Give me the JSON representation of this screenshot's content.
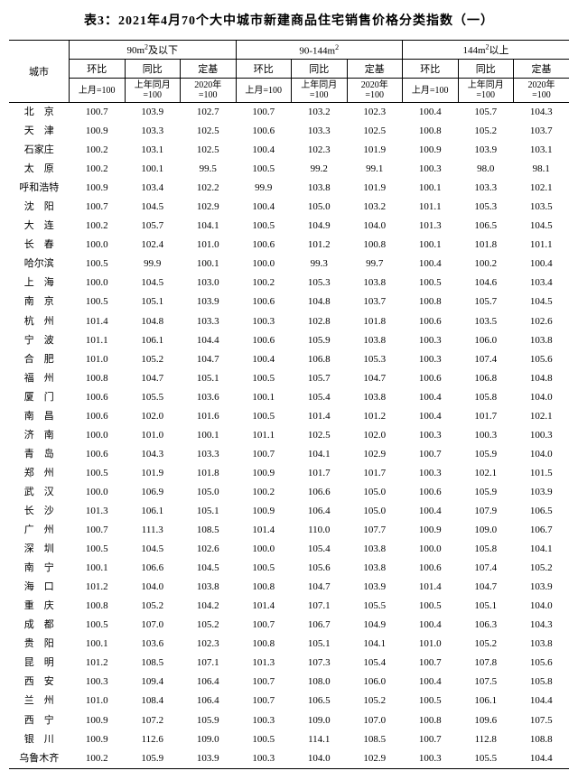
{
  "title": "表3：2021年4月70个大中城市新建商品住宅销售价格分类指数（一）",
  "header": {
    "city": "城市",
    "group1": "90m²及以下",
    "group2": "90-144m²",
    "group3": "144m²以上",
    "huanbi": "环比",
    "tongbi": "同比",
    "dingji": "定基",
    "sub_huanbi": "上月=100",
    "sub_tongbi": "上年同月\n=100",
    "sub_dingji": "2020年\n=100"
  },
  "rows": [
    {
      "city": "北　京",
      "v": [
        "100.7",
        "103.9",
        "102.7",
        "100.7",
        "103.2",
        "102.3",
        "100.4",
        "105.7",
        "104.3"
      ]
    },
    {
      "city": "天　津",
      "v": [
        "100.9",
        "103.3",
        "102.5",
        "100.6",
        "103.3",
        "102.5",
        "100.8",
        "105.2",
        "103.7"
      ]
    },
    {
      "city": "石家庄",
      "v": [
        "100.2",
        "103.1",
        "102.5",
        "100.4",
        "102.3",
        "101.9",
        "100.9",
        "103.9",
        "103.1"
      ]
    },
    {
      "city": "太　原",
      "v": [
        "100.2",
        "100.1",
        "99.5",
        "100.5",
        "99.2",
        "99.1",
        "100.3",
        "98.0",
        "98.1"
      ]
    },
    {
      "city": "呼和浩特",
      "v": [
        "100.9",
        "103.4",
        "102.2",
        "99.9",
        "103.8",
        "101.9",
        "100.1",
        "103.3",
        "102.1"
      ]
    },
    {
      "city": "沈　阳",
      "v": [
        "100.7",
        "104.5",
        "102.9",
        "100.4",
        "105.0",
        "103.2",
        "101.1",
        "105.3",
        "103.5"
      ]
    },
    {
      "city": "大　连",
      "v": [
        "100.2",
        "105.7",
        "104.1",
        "100.5",
        "104.9",
        "104.0",
        "101.3",
        "106.5",
        "104.5"
      ]
    },
    {
      "city": "长　春",
      "v": [
        "100.0",
        "102.4",
        "101.0",
        "100.6",
        "101.2",
        "100.8",
        "100.1",
        "101.8",
        "101.1"
      ]
    },
    {
      "city": "哈尔滨",
      "v": [
        "100.5",
        "99.9",
        "100.1",
        "100.0",
        "99.3",
        "99.7",
        "100.4",
        "100.2",
        "100.4"
      ]
    },
    {
      "city": "上　海",
      "v": [
        "100.0",
        "104.5",
        "103.0",
        "100.2",
        "105.3",
        "103.8",
        "100.5",
        "104.6",
        "103.4"
      ]
    },
    {
      "city": "南　京",
      "v": [
        "100.5",
        "105.1",
        "103.9",
        "100.6",
        "104.8",
        "103.7",
        "100.8",
        "105.7",
        "104.5"
      ]
    },
    {
      "city": "杭　州",
      "v": [
        "101.4",
        "104.8",
        "103.3",
        "100.3",
        "102.8",
        "101.8",
        "100.6",
        "103.5",
        "102.6"
      ]
    },
    {
      "city": "宁　波",
      "v": [
        "101.1",
        "106.1",
        "104.4",
        "100.6",
        "105.9",
        "103.8",
        "100.3",
        "106.0",
        "103.8"
      ]
    },
    {
      "city": "合　肥",
      "v": [
        "101.0",
        "105.2",
        "104.7",
        "100.4",
        "106.8",
        "105.3",
        "100.3",
        "107.4",
        "105.6"
      ]
    },
    {
      "city": "福　州",
      "v": [
        "100.8",
        "104.7",
        "105.1",
        "100.5",
        "105.7",
        "104.7",
        "100.6",
        "106.8",
        "104.8"
      ]
    },
    {
      "city": "厦　门",
      "v": [
        "100.6",
        "105.5",
        "103.6",
        "100.1",
        "105.4",
        "103.8",
        "100.4",
        "105.8",
        "104.0"
      ]
    },
    {
      "city": "南　昌",
      "v": [
        "100.6",
        "102.0",
        "101.6",
        "100.5",
        "101.4",
        "101.2",
        "100.4",
        "101.7",
        "102.1"
      ]
    },
    {
      "city": "济　南",
      "v": [
        "100.0",
        "101.0",
        "100.1",
        "101.1",
        "102.5",
        "102.0",
        "100.3",
        "100.3",
        "100.3"
      ]
    },
    {
      "city": "青　岛",
      "v": [
        "100.6",
        "104.3",
        "103.3",
        "100.7",
        "104.1",
        "102.9",
        "100.7",
        "105.9",
        "104.0"
      ]
    },
    {
      "city": "郑　州",
      "v": [
        "100.5",
        "101.9",
        "101.8",
        "100.9",
        "101.7",
        "101.7",
        "100.3",
        "102.1",
        "101.5"
      ]
    },
    {
      "city": "武　汉",
      "v": [
        "100.0",
        "106.9",
        "105.0",
        "100.2",
        "106.6",
        "105.0",
        "100.6",
        "105.9",
        "103.9"
      ]
    },
    {
      "city": "长　沙",
      "v": [
        "101.3",
        "106.1",
        "105.1",
        "100.9",
        "106.4",
        "105.0",
        "100.4",
        "107.9",
        "106.5"
      ]
    },
    {
      "city": "广　州",
      "v": [
        "100.7",
        "111.3",
        "108.5",
        "101.4",
        "110.0",
        "107.7",
        "100.9",
        "109.0",
        "106.7"
      ]
    },
    {
      "city": "深　圳",
      "v": [
        "100.5",
        "104.5",
        "102.6",
        "100.0",
        "105.4",
        "103.8",
        "100.0",
        "105.8",
        "104.1"
      ]
    },
    {
      "city": "南　宁",
      "v": [
        "100.1",
        "106.6",
        "104.5",
        "100.5",
        "105.6",
        "103.8",
        "100.6",
        "107.4",
        "105.2"
      ]
    },
    {
      "city": "海　口",
      "v": [
        "101.2",
        "104.0",
        "103.8",
        "100.8",
        "104.7",
        "103.9",
        "101.4",
        "104.7",
        "103.9"
      ]
    },
    {
      "city": "重　庆",
      "v": [
        "100.8",
        "105.2",
        "104.2",
        "101.4",
        "107.1",
        "105.5",
        "100.5",
        "105.1",
        "104.0"
      ]
    },
    {
      "city": "成　都",
      "v": [
        "100.5",
        "107.0",
        "105.2",
        "100.7",
        "106.7",
        "104.9",
        "100.4",
        "106.3",
        "104.3"
      ]
    },
    {
      "city": "贵　阳",
      "v": [
        "100.1",
        "103.6",
        "102.3",
        "100.8",
        "105.1",
        "104.1",
        "101.0",
        "105.2",
        "103.8"
      ]
    },
    {
      "city": "昆　明",
      "v": [
        "101.2",
        "108.5",
        "107.1",
        "101.3",
        "107.3",
        "105.4",
        "100.7",
        "107.8",
        "105.6"
      ]
    },
    {
      "city": "西　安",
      "v": [
        "100.3",
        "109.4",
        "106.4",
        "100.7",
        "108.0",
        "106.0",
        "100.4",
        "107.5",
        "105.8"
      ]
    },
    {
      "city": "兰　州",
      "v": [
        "101.0",
        "108.4",
        "106.4",
        "100.7",
        "106.5",
        "105.2",
        "100.5",
        "106.1",
        "104.4"
      ]
    },
    {
      "city": "西　宁",
      "v": [
        "100.9",
        "107.2",
        "105.9",
        "100.3",
        "109.0",
        "107.0",
        "100.8",
        "109.6",
        "107.5"
      ]
    },
    {
      "city": "银　川",
      "v": [
        "100.9",
        "112.6",
        "109.0",
        "100.5",
        "114.1",
        "108.5",
        "100.7",
        "112.8",
        "108.8"
      ]
    },
    {
      "city": "乌鲁木齐",
      "v": [
        "100.2",
        "105.9",
        "103.9",
        "100.3",
        "104.0",
        "102.9",
        "100.3",
        "105.5",
        "104.4"
      ]
    }
  ]
}
